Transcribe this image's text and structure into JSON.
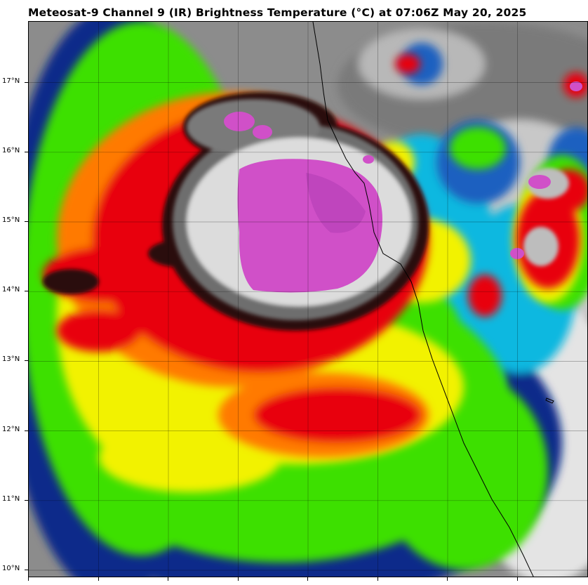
{
  "title": "Meteosat-9 Channel 9 (IR) Brightness Temperature (°C) at 07:06Z May 20, 2025",
  "map": {
    "type": "satellite-ir-imagery",
    "colors": {
      "cold_top": "#d050c8",
      "overshoot": "#ffffff",
      "grey_shield": "#6e6e6e",
      "red": "#e8000a",
      "orange": "#ff7a00",
      "yellow": "#f2f200",
      "green": "#3ee000",
      "blue": "#0a2a8a",
      "cyan": "#10d8f0",
      "warm_clear": "#d8d8d8",
      "coastline": "#000000"
    },
    "lat_labels": [
      "17°N",
      "16°N",
      "15°N",
      "14°N",
      "13°N",
      "12°N",
      "11°N",
      "10°N"
    ],
    "lat_values": [
      17,
      16,
      15,
      14,
      13,
      12,
      11,
      10
    ]
  }
}
